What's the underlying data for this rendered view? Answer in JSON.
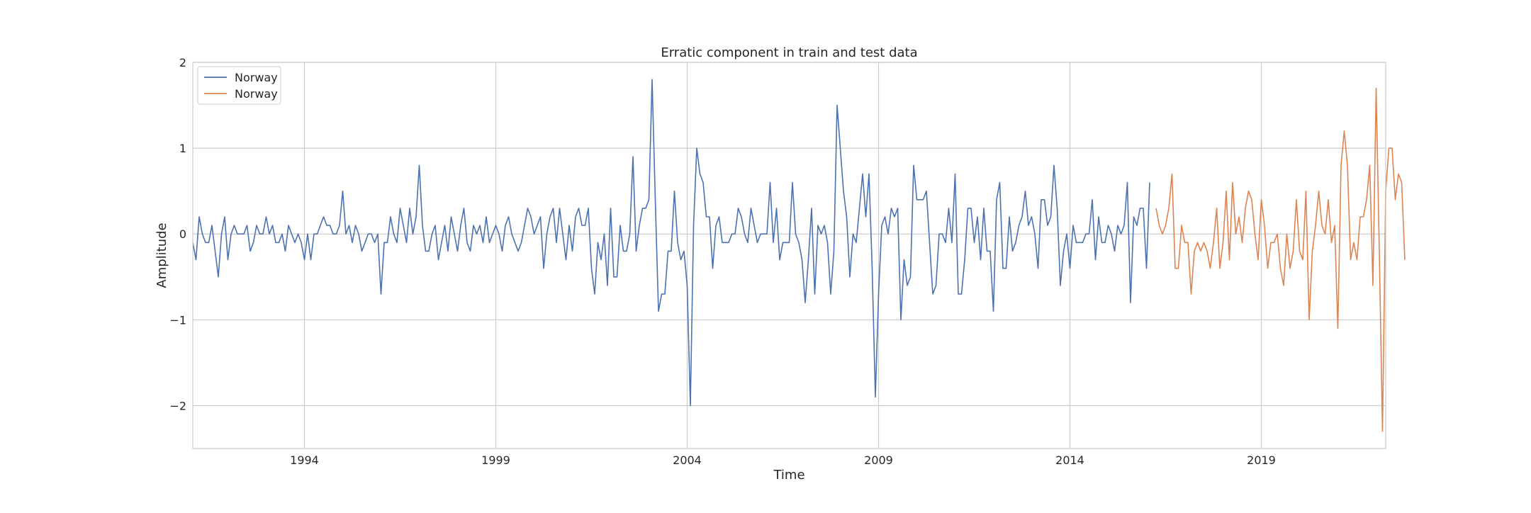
{
  "chart_data": {
    "type": "line",
    "title": "Erratic component in train and test data",
    "xlabel": "Time",
    "ylabel": "Amplitude",
    "x_start": "1991-02",
    "x_frequency": "monthly",
    "xlim": [
      "1991-02",
      "2022-04"
    ],
    "ylim": [
      -2.5,
      2.0
    ],
    "x_ticks": [
      {
        "date": "1994-01",
        "label": "1994"
      },
      {
        "date": "1999-01",
        "label": "1999"
      },
      {
        "date": "2004-01",
        "label": "2004"
      },
      {
        "date": "2009-01",
        "label": "2009"
      },
      {
        "date": "2014-01",
        "label": "2014"
      },
      {
        "date": "2019-01",
        "label": "2019"
      }
    ],
    "y_ticks": [
      {
        "value": 2,
        "label": "2"
      },
      {
        "value": 1,
        "label": "1"
      },
      {
        "value": 0,
        "label": "0"
      },
      {
        "value": -1,
        "label": "−1"
      },
      {
        "value": -2,
        "label": "−2"
      }
    ],
    "grid": true,
    "legend_position": "top-left",
    "series": [
      {
        "name": "Norway",
        "color": "#4c72b0",
        "start": "1991-02",
        "values": [
          -0.1,
          -0.3,
          0.2,
          0.0,
          -0.1,
          -0.1,
          0.1,
          -0.2,
          -0.5,
          0.0,
          0.2,
          -0.3,
          0.0,
          0.1,
          0.0,
          0.0,
          0.0,
          0.1,
          -0.2,
          -0.1,
          0.1,
          0.0,
          0.0,
          0.2,
          0.0,
          0.1,
          -0.1,
          -0.1,
          0.0,
          -0.2,
          0.1,
          0.0,
          -0.1,
          0.0,
          -0.1,
          -0.3,
          0.0,
          -0.3,
          0.0,
          0.0,
          0.1,
          0.2,
          0.1,
          0.1,
          0.0,
          0.0,
          0.1,
          0.5,
          0.0,
          0.1,
          -0.1,
          0.1,
          0.0,
          -0.2,
          -0.1,
          0.0,
          0.0,
          -0.1,
          0.0,
          -0.7,
          -0.1,
          -0.1,
          0.2,
          0.0,
          -0.1,
          0.3,
          0.1,
          -0.1,
          0.3,
          0.0,
          0.2,
          0.8,
          0.1,
          -0.2,
          -0.2,
          0.0,
          0.1,
          -0.3,
          -0.1,
          0.1,
          -0.2,
          0.2,
          0.0,
          -0.2,
          0.1,
          0.3,
          -0.1,
          -0.2,
          0.1,
          0.0,
          0.1,
          -0.1,
          0.2,
          -0.1,
          0.0,
          0.1,
          0.0,
          -0.2,
          0.1,
          0.2,
          0.0,
          -0.1,
          -0.2,
          -0.1,
          0.1,
          0.3,
          0.2,
          0.0,
          0.1,
          0.2,
          -0.4,
          0.0,
          0.2,
          0.3,
          -0.1,
          0.3,
          0.0,
          -0.3,
          0.1,
          -0.2,
          0.2,
          0.3,
          0.1,
          0.1,
          0.3,
          -0.4,
          -0.7,
          -0.1,
          -0.3,
          0.0,
          -0.6,
          0.3,
          -0.5,
          -0.5,
          0.1,
          -0.2,
          -0.2,
          0.0,
          0.9,
          -0.2,
          0.1,
          0.3,
          0.3,
          0.4,
          1.8,
          0.4,
          -0.9,
          -0.7,
          -0.7,
          -0.2,
          -0.2,
          0.5,
          -0.1,
          -0.3,
          -0.2,
          -0.6,
          -2.0,
          0.1,
          1.0,
          0.7,
          0.6,
          0.2,
          0.2,
          -0.4,
          0.1,
          0.2,
          -0.1,
          -0.1,
          -0.1,
          0.0,
          0.0,
          0.3,
          0.2,
          0.0,
          -0.1,
          0.3,
          0.1,
          -0.1,
          0.0,
          0.0,
          0.0,
          0.6,
          -0.1,
          0.3,
          -0.3,
          -0.1,
          -0.1,
          -0.1,
          0.6,
          0.0,
          -0.1,
          -0.3,
          -0.8,
          -0.3,
          0.3,
          -0.7,
          0.1,
          0.0,
          0.1,
          -0.1,
          -0.7,
          -0.2,
          1.5,
          1.0,
          0.5,
          0.2,
          -0.5,
          0.0,
          -0.1,
          0.3,
          0.7,
          0.2,
          0.7,
          -0.4,
          -1.9,
          -0.7,
          0.1,
          0.2,
          0.0,
          0.3,
          0.2,
          0.3,
          -1.0,
          -0.3,
          -0.6,
          -0.5,
          0.8,
          0.4,
          0.4,
          0.4,
          0.5,
          -0.1,
          -0.7,
          -0.6,
          0.0,
          0.0,
          -0.1,
          0.3,
          -0.1,
          0.7,
          -0.7,
          -0.7,
          -0.3,
          0.3,
          0.3,
          -0.1,
          0.2,
          -0.3,
          0.3,
          -0.2,
          -0.2,
          -0.9,
          0.4,
          0.6,
          -0.4,
          -0.4,
          0.2,
          -0.2,
          -0.1,
          0.1,
          0.2,
          0.5,
          0.1,
          0.2,
          0.0,
          -0.4,
          0.4,
          0.4,
          0.1,
          0.2,
          0.8,
          0.3,
          -0.6,
          -0.2,
          0.0,
          -0.4,
          0.1,
          -0.1,
          -0.1,
          -0.1,
          0.0,
          0.0,
          0.4,
          -0.3,
          0.2,
          -0.1,
          -0.1,
          0.1,
          0.0,
          -0.2,
          0.1,
          0.0,
          0.1,
          0.6,
          -0.8,
          0.2,
          0.1,
          0.3,
          0.3,
          -0.4,
          0.6
        ]
      },
      {
        "name": "Norway",
        "color": "#dd8452",
        "start": "2016-04",
        "values": [
          0.3,
          0.1,
          0.0,
          0.1,
          0.3,
          0.7,
          -0.4,
          -0.4,
          0.1,
          -0.1,
          -0.1,
          -0.7,
          -0.2,
          -0.1,
          -0.2,
          -0.1,
          -0.2,
          -0.4,
          -0.1,
          0.3,
          -0.4,
          -0.1,
          0.5,
          -0.3,
          0.6,
          0.0,
          0.2,
          -0.1,
          0.3,
          0.5,
          0.4,
          0.0,
          -0.3,
          0.4,
          0.1,
          -0.4,
          -0.1,
          -0.1,
          0.0,
          -0.4,
          -0.6,
          0.0,
          -0.4,
          -0.2,
          0.4,
          -0.2,
          -0.3,
          0.5,
          -1.0,
          -0.2,
          0.1,
          0.5,
          0.1,
          0.0,
          0.4,
          -0.1,
          0.1,
          -1.1,
          0.8,
          1.2,
          0.8,
          -0.3,
          -0.1,
          -0.3,
          0.2,
          0.2,
          0.4,
          0.8,
          -0.6,
          1.7,
          -0.2,
          -2.3,
          0.5,
          1.0,
          1.0,
          0.4,
          0.7,
          0.6,
          -0.3
        ]
      }
    ]
  }
}
